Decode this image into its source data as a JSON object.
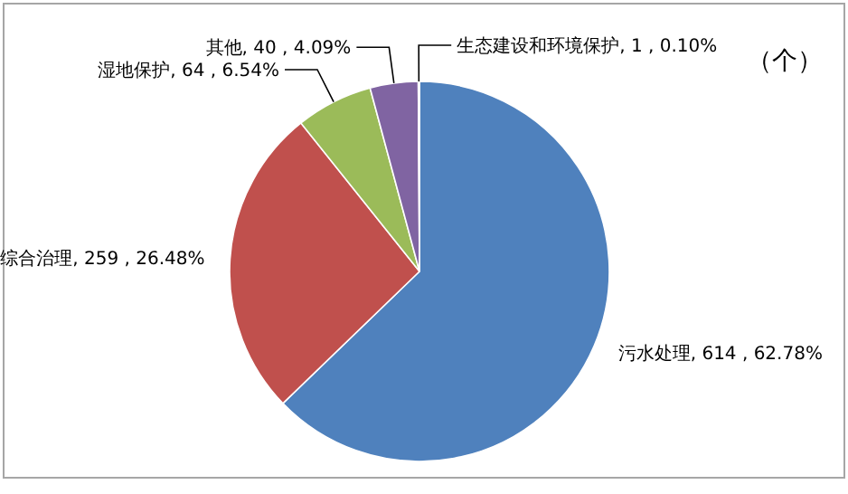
{
  "chart_data": {
    "type": "pie",
    "categories": [
      "污水处理",
      "综合治理",
      "湿地保护",
      "其他",
      "生态建设和环境保护"
    ],
    "values": [
      614,
      259,
      64,
      40,
      1
    ],
    "colors": [
      "#4f81bd",
      "#c0504d",
      "#9bbb59",
      "#8064a2",
      "#4bacc6"
    ],
    "value_labels": [
      "614 , 62.78%",
      "259 , 26.48%",
      "64 , 6.54%",
      "40 , 4.09%",
      "1 , 0.10%"
    ],
    "annotations": [
      "（个）"
    ]
  }
}
